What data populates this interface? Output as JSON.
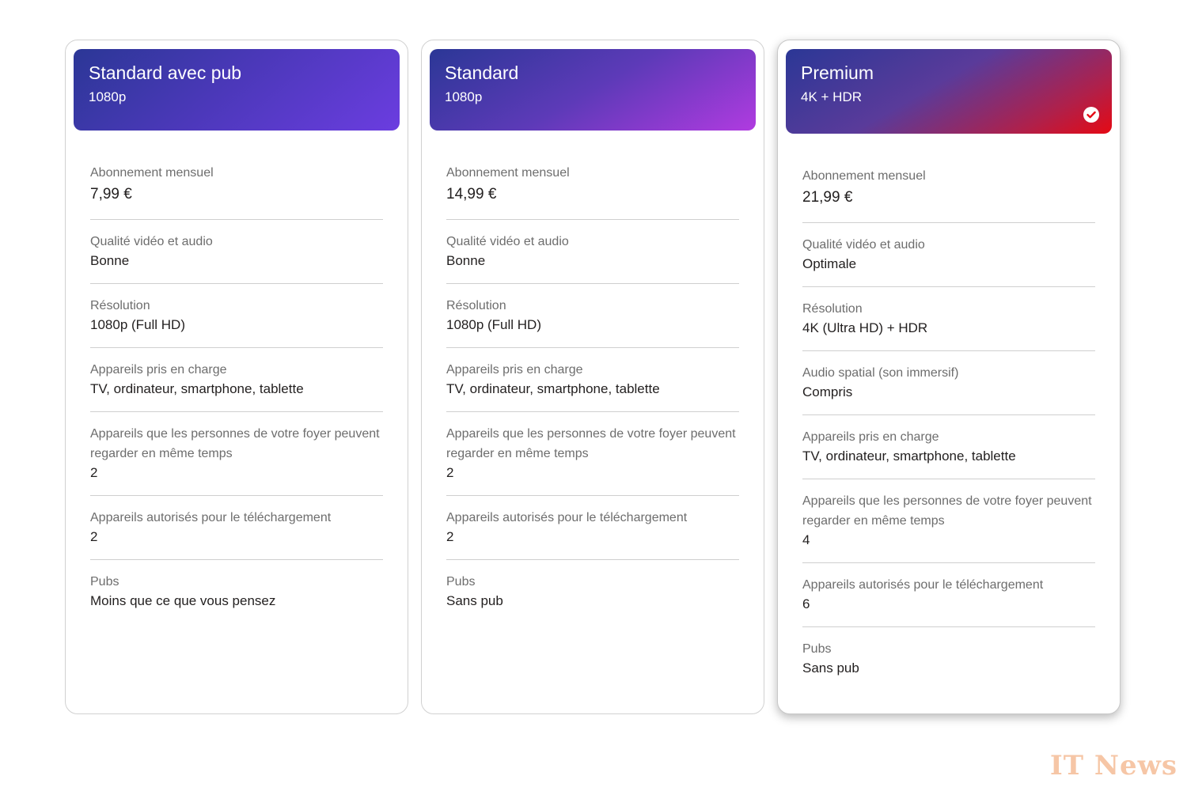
{
  "plans": [
    {
      "name": "Standard avec pub",
      "resolution": "1080p",
      "selected": false,
      "features": [
        {
          "label": "Abonnement mensuel",
          "value": "7,99 €"
        },
        {
          "label": "Qualité vidéo et audio",
          "value": "Bonne"
        },
        {
          "label": "Résolution",
          "value": "1080p (Full HD)"
        },
        {
          "label": "Appareils pris en charge",
          "value": "TV, ordinateur, smartphone, tablette"
        },
        {
          "label": "Appareils que les personnes de votre foyer peuvent regarder en même temps",
          "value": "2"
        },
        {
          "label": "Appareils autorisés pour le téléchargement",
          "value": "2"
        },
        {
          "label": "Pubs",
          "value": "Moins que ce que vous pensez"
        }
      ]
    },
    {
      "name": "Standard",
      "resolution": "1080p",
      "selected": false,
      "features": [
        {
          "label": "Abonnement mensuel",
          "value": "14,99 €"
        },
        {
          "label": "Qualité vidéo et audio",
          "value": "Bonne"
        },
        {
          "label": "Résolution",
          "value": "1080p (Full HD)"
        },
        {
          "label": "Appareils pris en charge",
          "value": "TV, ordinateur, smartphone, tablette"
        },
        {
          "label": "Appareils que les personnes de votre foyer peuvent regarder en même temps",
          "value": "2"
        },
        {
          "label": "Appareils autorisés pour le téléchargement",
          "value": "2"
        },
        {
          "label": "Pubs",
          "value": "Sans pub"
        }
      ]
    },
    {
      "name": "Premium",
      "resolution": "4K + HDR",
      "selected": true,
      "selected_icon": "check-circle-icon",
      "features": [
        {
          "label": "Abonnement mensuel",
          "value": "21,99 €"
        },
        {
          "label": "Qualité vidéo et audio",
          "value": "Optimale"
        },
        {
          "label": "Résolution",
          "value": "4K (Ultra HD) + HDR"
        },
        {
          "label": "Audio spatial (son immersif)",
          "value": "Compris"
        },
        {
          "label": "Appareils pris en charge",
          "value": "TV, ordinateur, smartphone, tablette"
        },
        {
          "label": "Appareils que les personnes de votre foyer peuvent regarder en même temps",
          "value": "4"
        },
        {
          "label": "Appareils autorisés pour le téléchargement",
          "value": "6"
        },
        {
          "label": "Pubs",
          "value": "Sans pub"
        }
      ]
    }
  ],
  "colors": {
    "selected_accent": "#e50914",
    "gradient_start": "#2b3796",
    "label_text": "#6d6d6d",
    "value_text": "#221f1f",
    "watermark": "#f6c6a6"
  },
  "watermark": "IT News"
}
